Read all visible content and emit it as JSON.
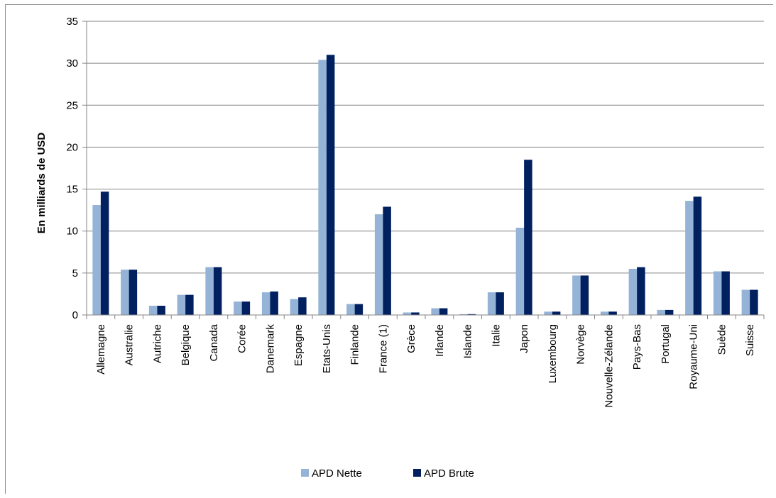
{
  "chart_data": {
    "type": "bar",
    "title": "",
    "xlabel": "",
    "ylabel": "En milliards de USD",
    "ylim": [
      0,
      35
    ],
    "yticks": [
      0,
      5,
      10,
      15,
      20,
      25,
      30,
      35
    ],
    "grid": true,
    "legend_position": "bottom",
    "categories": [
      "Allemagne",
      "Australie",
      "Autriche",
      "Belgique",
      "Canada",
      "Corée",
      "Danemark",
      "Espagne",
      "Etats-Unis",
      "Finlande",
      "France (1)",
      "Grèce",
      "Irlande",
      "Islande",
      "Italie",
      "Japon",
      "Luxembourg",
      "Norvège",
      "Nouvelle-Zélande",
      "Pays-Bas",
      "Portugal",
      "Royaume-Uni",
      "Suède",
      "Suisse"
    ],
    "series": [
      {
        "name": "APD Nette",
        "color": "#95b3d7",
        "values": [
          13.1,
          5.4,
          1.1,
          2.4,
          5.7,
          1.6,
          2.7,
          1.9,
          30.4,
          1.3,
          12.0,
          0.3,
          0.8,
          0.1,
          2.7,
          10.4,
          0.4,
          4.7,
          0.4,
          5.5,
          0.6,
          13.6,
          5.2,
          3.0
        ]
      },
      {
        "name": "APD Brute",
        "color": "#002060",
        "values": [
          14.7,
          5.4,
          1.1,
          2.4,
          5.7,
          1.6,
          2.8,
          2.1,
          31.0,
          1.3,
          12.9,
          0.3,
          0.8,
          0.1,
          2.7,
          18.5,
          0.4,
          4.7,
          0.4,
          5.7,
          0.6,
          14.1,
          5.2,
          3.0
        ]
      }
    ]
  }
}
